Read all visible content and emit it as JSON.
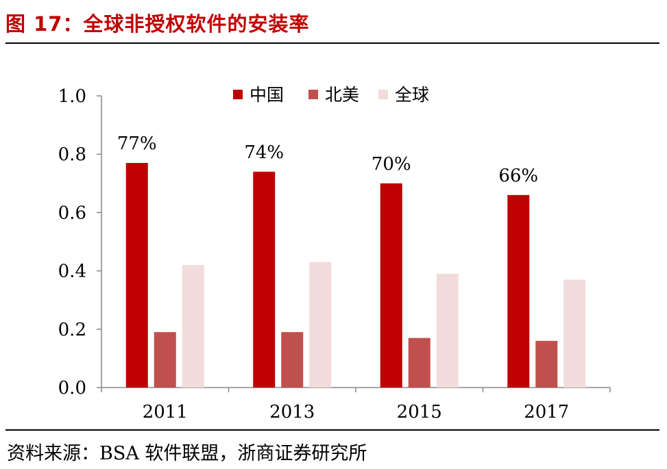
{
  "header": {
    "title": "图 17：全球非授权软件的安装率"
  },
  "footer": {
    "source": "资料来源：BSA 软件联盟，浙商证券研究所"
  },
  "chart_data": {
    "type": "bar",
    "title": "全球非授权软件的安装率",
    "categories": [
      "2011",
      "2013",
      "2015",
      "2017"
    ],
    "series": [
      {
        "name": "中国",
        "color": "#c00000",
        "values": [
          0.77,
          0.74,
          0.7,
          0.66
        ]
      },
      {
        "name": "北美",
        "color": "#c0504d",
        "values": [
          0.19,
          0.19,
          0.17,
          0.16
        ]
      },
      {
        "name": "全球",
        "color": "#f2dcdb",
        "values": [
          0.42,
          0.43,
          0.39,
          0.37
        ]
      }
    ],
    "data_labels": {
      "series": "中国",
      "labels": [
        "77%",
        "74%",
        "70%",
        "66%"
      ]
    },
    "yticks": [
      "0.0",
      "0.2",
      "0.4",
      "0.6",
      "0.8",
      "1.0"
    ],
    "ylim": [
      0,
      1.0
    ],
    "xlabel": "",
    "ylabel": "",
    "legend": "top",
    "grid": false
  }
}
